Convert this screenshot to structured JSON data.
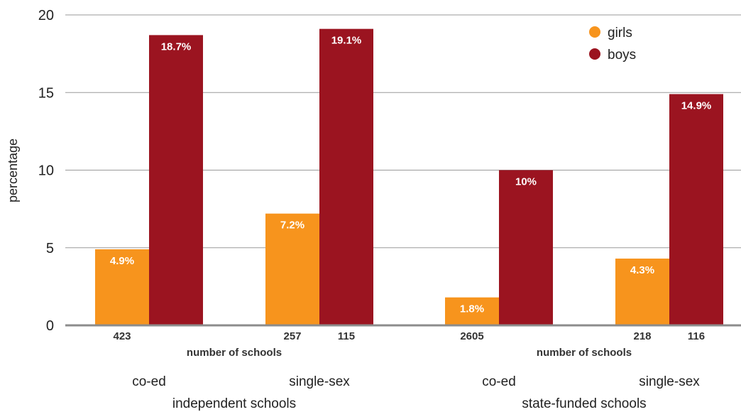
{
  "chart_data": {
    "type": "bar",
    "ylabel": "percentage",
    "ylim": [
      0,
      20
    ],
    "yticks": [
      0,
      5,
      10,
      15,
      20
    ],
    "grid": true,
    "legend_position": "top-right",
    "legend": [
      {
        "name": "girls",
        "color": "#f7941d"
      },
      {
        "name": "boys",
        "color": "#9b1420"
      }
    ],
    "count_caption": "number of schools",
    "groups": [
      {
        "label": "independent schools",
        "subgroups": [
          {
            "label": "co-ed",
            "girls": 4.9,
            "girls_label": "4.9%",
            "boys": 18.7,
            "boys_label": "18.7%",
            "counts": [
              {
                "series": "girls",
                "text": "423"
              }
            ]
          },
          {
            "label": "single-sex",
            "girls": 7.2,
            "girls_label": "7.2%",
            "boys": 19.1,
            "boys_label": "19.1%",
            "counts": [
              {
                "series": "girls",
                "text": "257"
              },
              {
                "series": "boys",
                "text": "115"
              }
            ]
          }
        ]
      },
      {
        "label": "state-funded schools",
        "subgroups": [
          {
            "label": "co-ed",
            "girls": 1.8,
            "girls_label": "1.8%",
            "boys": 10,
            "boys_label": "10%",
            "counts": [
              {
                "series": "girls",
                "text": "2605"
              }
            ]
          },
          {
            "label": "single-sex",
            "girls": 4.3,
            "girls_label": "4.3%",
            "boys": 14.9,
            "boys_label": "14.9%",
            "counts": [
              {
                "series": "girls",
                "text": "218"
              },
              {
                "series": "boys",
                "text": "116"
              }
            ]
          }
        ]
      }
    ]
  }
}
